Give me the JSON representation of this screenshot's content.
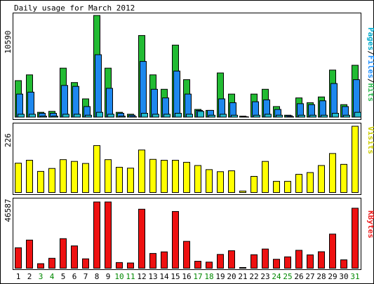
{
  "chart_data": [
    {
      "type": "bar",
      "title": "Daily usage for March 2012",
      "ylabel_max": "10590",
      "legend": [
        {
          "text": "Pages",
          "color": "#00aacc"
        },
        {
          "text": "/",
          "color": "#000000"
        },
        {
          "text": "Files",
          "color": "#1e90ff"
        },
        {
          "text": "/",
          "color": "#000000"
        },
        {
          "text": "Hits",
          "color": "#33bb55"
        }
      ],
      "ylim": [
        0,
        10590
      ],
      "series": [
        {
          "name": "Hits",
          "color": "#22bb33",
          "values": [
            3800,
            4400,
            500,
            600,
            5100,
            3600,
            1900,
            10590,
            5100,
            500,
            300,
            8500,
            4400,
            2900,
            7500,
            3900,
            800,
            700,
            4600,
            2400,
            100,
            2400,
            2900,
            1100,
            200,
            2000,
            1500,
            2100,
            4900,
            1300,
            5400
          ]
        },
        {
          "name": "Files",
          "color": "#1e88ee",
          "values": [
            2400,
            2600,
            400,
            400,
            3300,
            3200,
            1100,
            6500,
            3000,
            400,
            200,
            5800,
            2900,
            2000,
            4800,
            2400,
            700,
            700,
            1900,
            1500,
            50,
            1600,
            1800,
            800,
            150,
            1400,
            1300,
            1700,
            3500,
            1100,
            3900
          ]
        },
        {
          "name": "Pages",
          "color": "#22bbcc",
          "values": [
            300,
            300,
            100,
            100,
            300,
            300,
            200,
            500,
            300,
            100,
            50,
            400,
            300,
            300,
            400,
            300,
            600,
            200,
            300,
            200,
            20,
            200,
            300,
            200,
            50,
            200,
            200,
            200,
            400,
            200,
            500
          ]
        }
      ]
    },
    {
      "type": "bar",
      "ylabel_max": "226",
      "legend": [
        {
          "text": "Visits",
          "color": "#cccc00"
        }
      ],
      "ylim": [
        0,
        226
      ],
      "series": [
        {
          "name": "Visits",
          "color": "#ffff00",
          "values": [
            100,
            110,
            72,
            82,
            112,
            106,
            99,
            160,
            112,
            86,
            83,
            145,
            113,
            110,
            110,
            103,
            92,
            78,
            71,
            74,
            5,
            55,
            106,
            38,
            38,
            62,
            68,
            92,
            133,
            96,
            226
          ]
        }
      ]
    },
    {
      "type": "bar",
      "ylabel_max": "46587",
      "legend": [
        {
          "text": "KBytes",
          "color": "#ee2222"
        }
      ],
      "ylim": [
        0,
        46587
      ],
      "series": [
        {
          "name": "KBytes",
          "color": "#ee1111",
          "values": [
            14400,
            19800,
            3200,
            7000,
            20800,
            15700,
            6600,
            46587,
            46587,
            4000,
            3700,
            41500,
            10400,
            11500,
            39900,
            18900,
            4900,
            4300,
            9700,
            12300,
            500,
            9500,
            13500,
            6300,
            8000,
            12600,
            9400,
            11600,
            24000,
            5900,
            42200
          ]
        }
      ]
    }
  ],
  "x_labels": [
    {
      "text": "1",
      "color": "#000000"
    },
    {
      "text": "2",
      "color": "#000000"
    },
    {
      "text": "3",
      "color": "#008800"
    },
    {
      "text": "4",
      "color": "#008800"
    },
    {
      "text": "5",
      "color": "#000000"
    },
    {
      "text": "6",
      "color": "#000000"
    },
    {
      "text": "7",
      "color": "#000000"
    },
    {
      "text": "8",
      "color": "#000000"
    },
    {
      "text": "9",
      "color": "#000000"
    },
    {
      "text": "10",
      "color": "#008800"
    },
    {
      "text": "11",
      "color": "#008800"
    },
    {
      "text": "12",
      "color": "#000000"
    },
    {
      "text": "13",
      "color": "#000000"
    },
    {
      "text": "14",
      "color": "#000000"
    },
    {
      "text": "15",
      "color": "#000000"
    },
    {
      "text": "16",
      "color": "#000000"
    },
    {
      "text": "17",
      "color": "#008800"
    },
    {
      "text": "18",
      "color": "#008800"
    },
    {
      "text": "19",
      "color": "#000000"
    },
    {
      "text": "20",
      "color": "#000000"
    },
    {
      "text": "21",
      "color": "#000000"
    },
    {
      "text": "22",
      "color": "#000000"
    },
    {
      "text": "23",
      "color": "#000000"
    },
    {
      "text": "24",
      "color": "#008800"
    },
    {
      "text": "25",
      "color": "#008800"
    },
    {
      "text": "26",
      "color": "#000000"
    },
    {
      "text": "27",
      "color": "#000000"
    },
    {
      "text": "28",
      "color": "#000000"
    },
    {
      "text": "29",
      "color": "#000000"
    },
    {
      "text": "30",
      "color": "#000000"
    },
    {
      "text": "31",
      "color": "#008800"
    }
  ]
}
